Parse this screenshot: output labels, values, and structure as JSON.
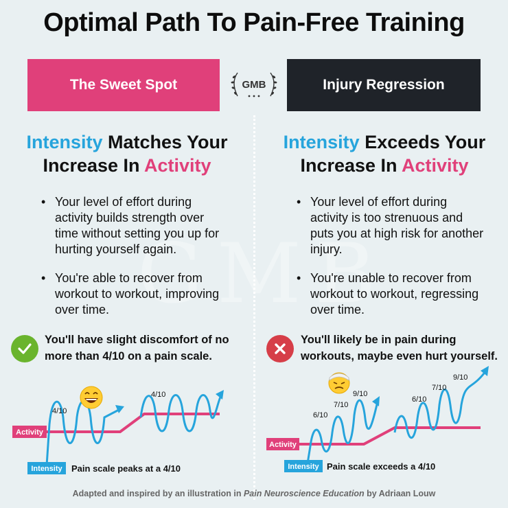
{
  "title": "Optimal Path To Pain-Free Training",
  "logo": {
    "text": "GMB"
  },
  "watermark": "GMB",
  "colors": {
    "pink": "#e0407a",
    "blue": "#26a4dc",
    "dark": "#1f2329",
    "green": "#6ab42d",
    "red": "#d63e48",
    "background": "#e9f0f2"
  },
  "left": {
    "header": "The Sweet Spot",
    "heading": {
      "part1": "Intensity",
      "part2": " Matches Your",
      "part3": "Increase In ",
      "part4": "Activity"
    },
    "bullets": [
      "Your level of effort during activity builds strength over time without setting you up for hurting yourself again.",
      "You're able to recover from workout to workout, improving over time."
    ],
    "callout": "You'll have slight discomfort of no more than 4/10 on a pain scale.",
    "callout_icon": "check-icon",
    "graph": {
      "activity_label": "Activity",
      "intensity_label": "Intensity",
      "caption": "Pain scale peaks at a 4/10",
      "peak_labels": [
        "4/10",
        "4/10"
      ],
      "emoji_icon": "grinning-face-icon"
    }
  },
  "right": {
    "header": "Injury Regression",
    "heading": {
      "part1": "Intensity",
      "part2": " Exceeds Your",
      "part3": "Increase In ",
      "part4": "Activity"
    },
    "bullets": [
      "Your level of effort during activity is too strenuous and puts you at high risk for another injury.",
      "You're unable to recover from workout to workout, regressing over time."
    ],
    "callout": "You'll likely be in pain during workouts, maybe even hurt yourself.",
    "callout_icon": "x-icon",
    "graph": {
      "activity_label": "Activity",
      "intensity_label": "Intensity",
      "caption": "Pain scale exceeds a 4/10",
      "peak_labels": [
        "6/10",
        "7/10",
        "9/10",
        "6/10",
        "7/10",
        "9/10"
      ],
      "emoji_icon": "bandaged-face-icon"
    }
  },
  "footer": {
    "prefix": "Adapted and inspired by an illustration in ",
    "book": "Pain Neuroscience Education",
    "suffix": " by Adriaan Louw"
  }
}
